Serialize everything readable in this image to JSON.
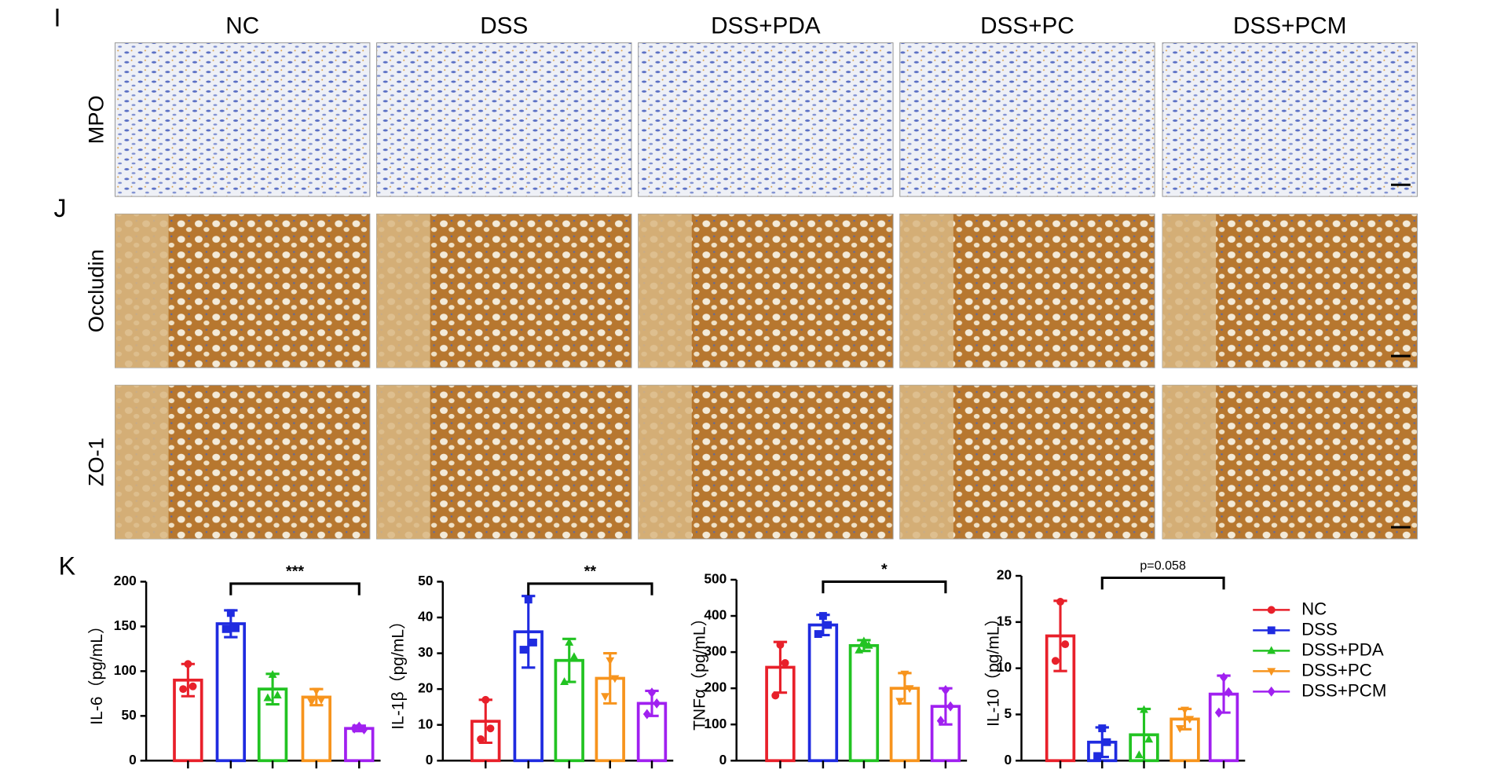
{
  "panels": [
    "I",
    "J",
    "K"
  ],
  "columns": [
    "NC",
    "DSS",
    "DSS+PDA",
    "DSS+PC",
    "DSS+PCM"
  ],
  "rows": [
    "MPO",
    "Occludin",
    "ZO-1"
  ],
  "legend": {
    "categories": [
      "NC",
      "DSS",
      "DSS+PDA",
      "DSS+PC",
      "DSS+PCM"
    ],
    "colors": [
      "#e8202a",
      "#1f2be0",
      "#22c322",
      "#f7941d",
      "#a020f0"
    ]
  },
  "chart_data": [
    {
      "type": "bar",
      "ylabel": "IL-6（pg/mL）",
      "ylim": [
        0,
        200
      ],
      "yticks": [
        0,
        50,
        100,
        150,
        200
      ],
      "values": [
        90,
        153,
        80,
        71,
        36
      ],
      "errors": [
        18,
        15,
        17,
        9,
        3
      ],
      "points": [
        [
          108,
          80,
          83
        ],
        [
          165,
          147,
          148
        ],
        [
          96,
          70,
          73
        ],
        [
          78,
          66,
          68
        ],
        [
          38,
          36,
          35
        ]
      ],
      "significance": "***"
    },
    {
      "type": "bar",
      "ylabel": "IL-1β（pg/mL）",
      "ylim": [
        0,
        50
      ],
      "yticks": [
        0,
        10,
        20,
        30,
        40,
        50
      ],
      "values": [
        11,
        36,
        28,
        23,
        16
      ],
      "errors": [
        6,
        10,
        6,
        7,
        3.5
      ],
      "points": [
        [
          17,
          6,
          9
        ],
        [
          45,
          31,
          33
        ],
        [
          33,
          22,
          29
        ],
        [
          28,
          18,
          23
        ],
        [
          19,
          13,
          16
        ]
      ],
      "significance": "**"
    },
    {
      "type": "bar",
      "ylabel": "TNFα（pg/mL）",
      "ylim": [
        0,
        500
      ],
      "yticks": [
        0,
        100,
        200,
        300,
        400,
        500
      ],
      "values": [
        258,
        375,
        318,
        200,
        150
      ],
      "errors": [
        70,
        28,
        15,
        42,
        50
      ],
      "points": [
        [
          320,
          180,
          270
        ],
        [
          400,
          350,
          375
        ],
        [
          330,
          305,
          318
        ],
        [
          240,
          165,
          200
        ],
        [
          195,
          110,
          150
        ]
      ],
      "significance": "*"
    },
    {
      "type": "bar",
      "ylabel": "IL-10（pg/mL）",
      "ylim": [
        0,
        20
      ],
      "yticks": [
        0,
        5,
        10,
        15,
        20
      ],
      "values": [
        13.5,
        2,
        2.8,
        4.5,
        7.2
      ],
      "errors": [
        3.8,
        1.6,
        2.8,
        1.1,
        2
      ],
      "points": [
        [
          17.2,
          10.8,
          12.6
        ],
        [
          3.5,
          0.5,
          2
        ],
        [
          5.5,
          0.6,
          2.3
        ],
        [
          5.5,
          3.5,
          4.5
        ],
        [
          9,
          5.2,
          7.4
        ]
      ],
      "significance": "p=0.058"
    }
  ]
}
